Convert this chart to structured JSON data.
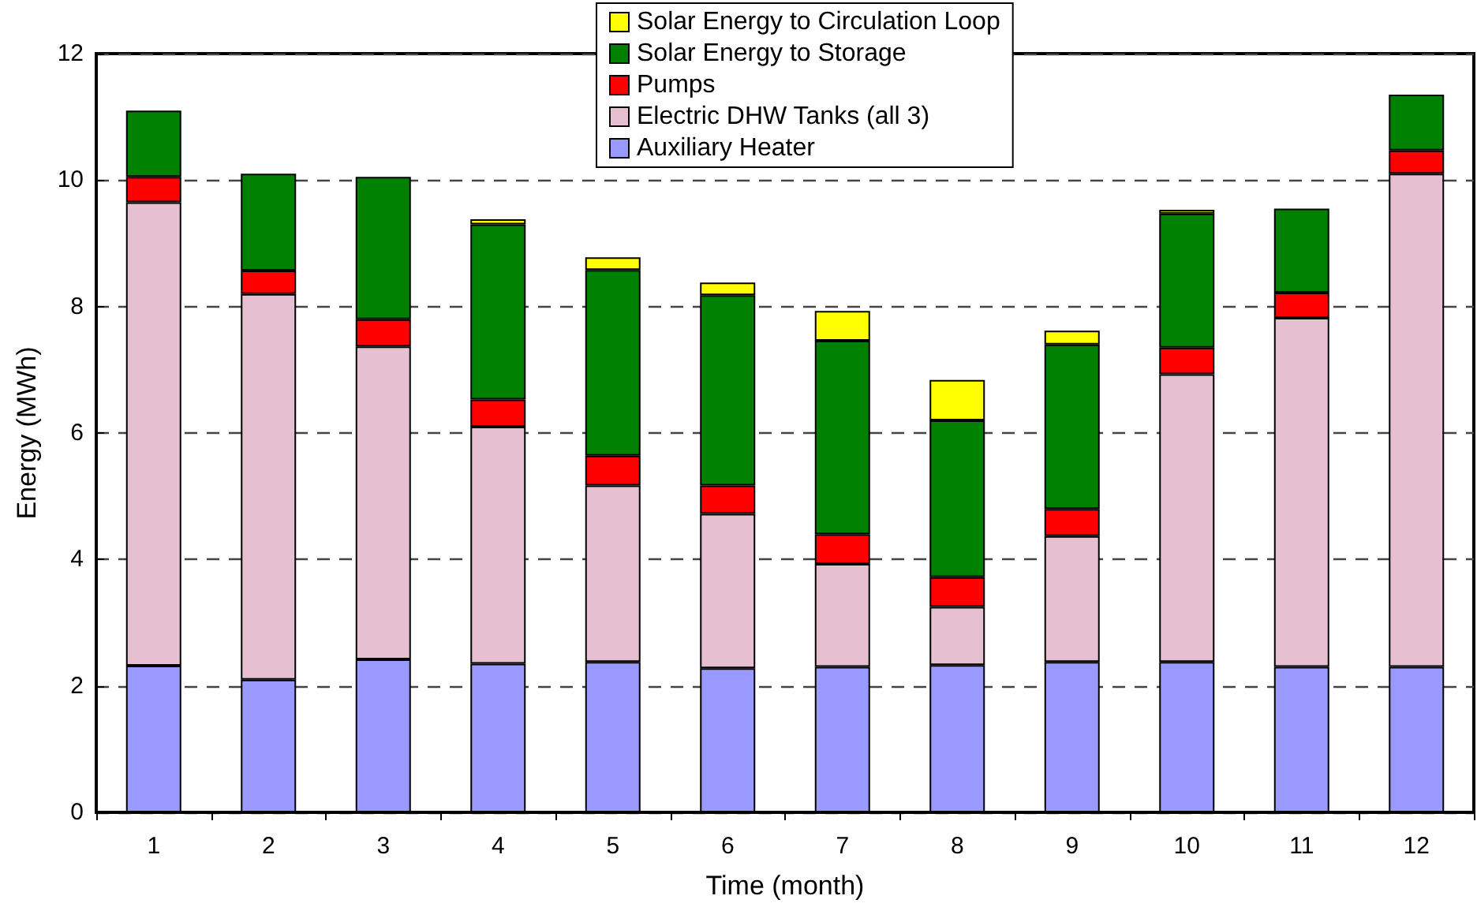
{
  "chart_data": {
    "type": "bar",
    "stacked": true,
    "xlabel": "Time (month)",
    "ylabel": "Energy (MWh)",
    "categories": [
      "1",
      "2",
      "3",
      "4",
      "5",
      "6",
      "7",
      "8",
      "9",
      "10",
      "11",
      "12"
    ],
    "series": [
      {
        "name": "Auxiliary Heater",
        "color": "#9999ff",
        "values": [
          2.32,
          2.1,
          2.42,
          2.35,
          2.38,
          2.28,
          2.3,
          2.33,
          2.38,
          2.38,
          2.3,
          2.3
        ]
      },
      {
        "name": "Electric DHW Tanks (all 3)",
        "color": "#e6bfd0",
        "values": [
          7.33,
          6.1,
          4.95,
          3.75,
          2.79,
          2.44,
          1.63,
          0.92,
          1.99,
          4.55,
          5.52,
          7.8
        ]
      },
      {
        "name": "Pumps",
        "color": "#ff0000",
        "values": [
          0.4,
          0.37,
          0.43,
          0.43,
          0.47,
          0.45,
          0.47,
          0.47,
          0.43,
          0.42,
          0.4,
          0.37
        ]
      },
      {
        "name": "Solar Energy to Storage",
        "color": "#008000",
        "values": [
          1.05,
          1.53,
          2.25,
          2.77,
          2.94,
          3.01,
          3.06,
          2.48,
          2.6,
          2.12,
          1.33,
          0.88
        ]
      },
      {
        "name": "Solar Energy to Circulation Loop",
        "color": "#ffff00",
        "values": [
          0,
          0,
          null,
          0.08,
          0.2,
          0.2,
          0.47,
          0.64,
          0.22,
          0.06,
          0,
          0
        ]
      }
    ],
    "ylim": [
      0,
      12
    ],
    "yticks": [
      0,
      2,
      4,
      6,
      8,
      10,
      12
    ],
    "grid": "y",
    "legend": "top"
  }
}
